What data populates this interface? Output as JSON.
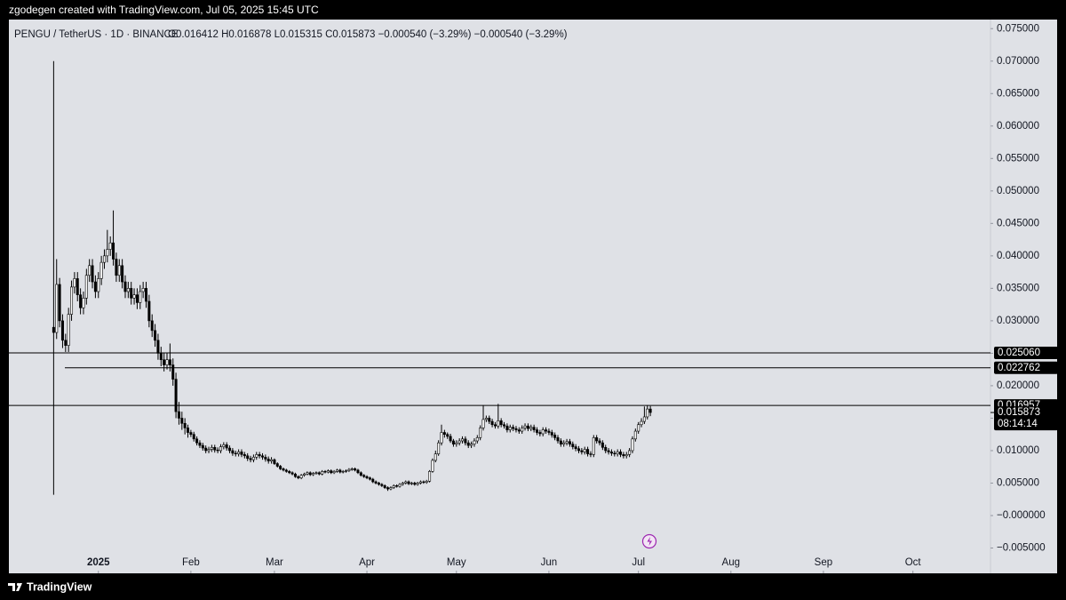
{
  "attribution": "zgodegen created with TradingView.com, Jul 05, 2025 15:45 UTC",
  "brand": "TradingView",
  "chart_data": {
    "type": "candlestick",
    "title": "PENGU / TetherUS · 1D · BINANCE",
    "ohlc_text": "O0.016412 H0.016878 L0.015315 C0.015873 −0.000540 (−3.29%) −0.000540 (−3.29%)",
    "up_color": "#ffffff",
    "down_color": "#000000",
    "xlim": [
      -30,
      299
    ],
    "xticks": [
      {
        "value": 0,
        "label": "2025"
      },
      {
        "value": 31,
        "label": "Feb"
      },
      {
        "value": 59,
        "label": "Mar"
      },
      {
        "value": 90,
        "label": "Apr"
      },
      {
        "value": 120,
        "label": "May"
      },
      {
        "value": 151,
        "label": "Jun"
      },
      {
        "value": 181,
        "label": "Jul"
      },
      {
        "value": 212,
        "label": "Aug"
      },
      {
        "value": 243,
        "label": "Sep"
      },
      {
        "value": 273,
        "label": "Oct"
      }
    ],
    "ylim": [
      -0.0089,
      0.0764
    ],
    "yticks": [
      {
        "value": -0.005,
        "label": "−0.005000"
      },
      {
        "value": 0,
        "label": "−0.000000"
      },
      {
        "value": 0.005,
        "label": "0.005000"
      },
      {
        "value": 0.01,
        "label": "0.010000"
      },
      {
        "value": 0.015,
        "label": "0.015000"
      },
      {
        "value": 0.02,
        "label": "0.020000"
      },
      {
        "value": 0.025,
        "label": "0.025000"
      },
      {
        "value": 0.03,
        "label": "0.030000"
      },
      {
        "value": 0.035,
        "label": "0.035000"
      },
      {
        "value": 0.04,
        "label": "0.040000"
      },
      {
        "value": 0.045,
        "label": "0.045000"
      },
      {
        "value": 0.05,
        "label": "0.050000"
      },
      {
        "value": 0.055,
        "label": "0.055000"
      },
      {
        "value": 0.06,
        "label": "0.060000"
      },
      {
        "value": 0.065,
        "label": "0.065000"
      },
      {
        "value": 0.07,
        "label": "0.070000"
      },
      {
        "value": 0.075,
        "label": "0.075000"
      }
    ],
    "levels": [
      {
        "value": 0.02506,
        "label": "0.025060"
      },
      {
        "value": 0.022762,
        "label": "0.022762"
      },
      {
        "value": 0.016957,
        "label": "0.016957"
      }
    ],
    "last_price": {
      "value": 0.015873,
      "label": "0.015873"
    },
    "countdown": "08:14:14",
    "x": [
      -15,
      -14,
      -13,
      -12,
      -11,
      -10,
      -9,
      -8,
      -7,
      -6,
      -5,
      -4,
      -3,
      -2,
      -1,
      0,
      1,
      2,
      3,
      4,
      5,
      6,
      7,
      8,
      9,
      10,
      11,
      12,
      13,
      14,
      15,
      16,
      17,
      18,
      19,
      20,
      21,
      22,
      23,
      24,
      25,
      26,
      27,
      28,
      29,
      30,
      31,
      32,
      33,
      34,
      35,
      36,
      37,
      38,
      39,
      40,
      41,
      42,
      43,
      44,
      45,
      46,
      47,
      48,
      49,
      50,
      51,
      52,
      53,
      54,
      55,
      56,
      57,
      58,
      59,
      60,
      61,
      62,
      63,
      64,
      65,
      66,
      67,
      68,
      69,
      70,
      71,
      72,
      73,
      74,
      75,
      76,
      77,
      78,
      79,
      80,
      81,
      82,
      83,
      84,
      85,
      86,
      87,
      88,
      89,
      90,
      91,
      92,
      93,
      94,
      95,
      96,
      97,
      98,
      99,
      100,
      101,
      102,
      103,
      104,
      105,
      106,
      107,
      108,
      109,
      110,
      111,
      112,
      113,
      114,
      115,
      116,
      117,
      118,
      119,
      120,
      121,
      122,
      123,
      124,
      125,
      126,
      127,
      128,
      129,
      130,
      131,
      132,
      133,
      134,
      135,
      136,
      137,
      138,
      139,
      140,
      141,
      142,
      143,
      144,
      145,
      146,
      147,
      148,
      149,
      150,
      151,
      152,
      153,
      154,
      155,
      156,
      157,
      158,
      159,
      160,
      161,
      162,
      163,
      164,
      165,
      166,
      167,
      168,
      169,
      170,
      171,
      172,
      173,
      174,
      175,
      176,
      177,
      178,
      179,
      180,
      181,
      182,
      183,
      184,
      185
    ],
    "open": [
      0.029,
      0.0282,
      0.0356,
      0.03,
      0.027,
      0.0262,
      0.031,
      0.0352,
      0.0365,
      0.034,
      0.032,
      0.0335,
      0.037,
      0.0385,
      0.036,
      0.0345,
      0.0365,
      0.039,
      0.04,
      0.041,
      0.042,
      0.0395,
      0.037,
      0.0385,
      0.036,
      0.0345,
      0.035,
      0.0335,
      0.034,
      0.0328,
      0.0345,
      0.035,
      0.033,
      0.03,
      0.0285,
      0.027,
      0.025,
      0.024,
      0.0232,
      0.024,
      0.0232,
      0.021,
      0.016,
      0.015,
      0.0142,
      0.0135,
      0.0128,
      0.0125,
      0.0118,
      0.0112,
      0.0108,
      0.0104,
      0.01,
      0.0102,
      0.0105,
      0.0101,
      0.01,
      0.0106,
      0.0109,
      0.0104,
      0.01,
      0.0096,
      0.0095,
      0.0098,
      0.0094,
      0.0092,
      0.0088,
      0.0086,
      0.009,
      0.0094,
      0.0092,
      0.009,
      0.0087,
      0.0084,
      0.0086,
      0.008,
      0.0076,
      0.0072,
      0.007,
      0.0068,
      0.0066,
      0.0064,
      0.006,
      0.0058,
      0.0062,
      0.0064,
      0.0066,
      0.0063,
      0.0065,
      0.0066,
      0.0064,
      0.0068,
      0.0067,
      0.0069,
      0.0066,
      0.0068,
      0.007,
      0.0067,
      0.0068,
      0.0069,
      0.0071,
      0.0072,
      0.007,
      0.0066,
      0.0062,
      0.006,
      0.0058,
      0.0056,
      0.0052,
      0.005,
      0.0048,
      0.0046,
      0.0043,
      0.0041,
      0.0043,
      0.0046,
      0.0045,
      0.0048,
      0.005,
      0.0052,
      0.0049,
      0.005,
      0.0048,
      0.005,
      0.0052,
      0.0051,
      0.0053,
      0.0068,
      0.0085,
      0.0095,
      0.0112,
      0.0128,
      0.0125,
      0.0122,
      0.0115,
      0.011,
      0.0112,
      0.0115,
      0.0118,
      0.0112,
      0.0108,
      0.011,
      0.0115,
      0.012,
      0.0135,
      0.0148,
      0.015,
      0.0145,
      0.014,
      0.0138,
      0.0146,
      0.014,
      0.0138,
      0.0132,
      0.0136,
      0.0134,
      0.0132,
      0.013,
      0.0135,
      0.0138,
      0.0134,
      0.0136,
      0.0132,
      0.0128,
      0.0126,
      0.0132,
      0.013,
      0.0128,
      0.0124,
      0.012,
      0.0115,
      0.011,
      0.0112,
      0.0114,
      0.011,
      0.0106,
      0.0103,
      0.01,
      0.0098,
      0.0102,
      0.0095,
      0.0094,
      0.012,
      0.0115,
      0.0112,
      0.0105,
      0.01,
      0.0098,
      0.0096,
      0.0095,
      0.0098,
      0.0094,
      0.0092,
      0.0094,
      0.01,
      0.0118,
      0.013,
      0.014,
      0.0145,
      0.0152,
      0.016412
    ],
    "high": [
      0.07,
      0.0395,
      0.0366,
      0.031,
      0.028,
      0.032,
      0.0362,
      0.0375,
      0.0375,
      0.035,
      0.0345,
      0.038,
      0.0395,
      0.0395,
      0.037,
      0.0375,
      0.04,
      0.041,
      0.044,
      0.043,
      0.047,
      0.0405,
      0.0395,
      0.0395,
      0.037,
      0.036,
      0.036,
      0.035,
      0.035,
      0.0355,
      0.036,
      0.036,
      0.034,
      0.031,
      0.0295,
      0.028,
      0.026,
      0.025,
      0.025,
      0.0265,
      0.0242,
      0.022,
      0.0175,
      0.016,
      0.015,
      0.014,
      0.0132,
      0.0129,
      0.0122,
      0.0116,
      0.0112,
      0.0108,
      0.0106,
      0.0109,
      0.0109,
      0.0105,
      0.011,
      0.0113,
      0.0113,
      0.0108,
      0.0104,
      0.01,
      0.0102,
      0.0102,
      0.0098,
      0.0096,
      0.0092,
      0.0094,
      0.0098,
      0.0098,
      0.0096,
      0.0094,
      0.0091,
      0.009,
      0.0088,
      0.0082,
      0.0078,
      0.0074,
      0.0072,
      0.007,
      0.0068,
      0.0066,
      0.0062,
      0.0064,
      0.0066,
      0.0068,
      0.0068,
      0.0067,
      0.0068,
      0.0068,
      0.007,
      0.007,
      0.0071,
      0.0071,
      0.007,
      0.0072,
      0.0072,
      0.007,
      0.0071,
      0.0073,
      0.0074,
      0.0074,
      0.0072,
      0.0068,
      0.0064,
      0.0062,
      0.006,
      0.0058,
      0.0054,
      0.0052,
      0.005,
      0.0048,
      0.0045,
      0.0045,
      0.0048,
      0.0048,
      0.005,
      0.0052,
      0.0054,
      0.0054,
      0.0052,
      0.0052,
      0.0052,
      0.0054,
      0.0054,
      0.0055,
      0.007,
      0.0088,
      0.01,
      0.0116,
      0.014,
      0.0132,
      0.0128,
      0.0126,
      0.0118,
      0.0116,
      0.0119,
      0.0122,
      0.0122,
      0.0116,
      0.0114,
      0.0119,
      0.0124,
      0.0139,
      0.017,
      0.0154,
      0.0154,
      0.0149,
      0.0144,
      0.0172,
      0.015,
      0.0144,
      0.0142,
      0.014,
      0.014,
      0.0138,
      0.0136,
      0.0139,
      0.0142,
      0.0142,
      0.014,
      0.014,
      0.0136,
      0.0132,
      0.0136,
      0.0136,
      0.0134,
      0.0132,
      0.0128,
      0.0124,
      0.0119,
      0.0116,
      0.0118,
      0.0118,
      0.0114,
      0.011,
      0.0107,
      0.0104,
      0.0106,
      0.0106,
      0.0099,
      0.0124,
      0.0124,
      0.0119,
      0.0116,
      0.0109,
      0.0104,
      0.0102,
      0.01,
      0.0102,
      0.0102,
      0.0098,
      0.0098,
      0.0104,
      0.0122,
      0.0134,
      0.0144,
      0.015,
      0.0168,
      0.017,
      0.016878
    ],
    "low": [
      0.0032,
      0.0272,
      0.029,
      0.0258,
      0.0252,
      0.0252,
      0.03,
      0.0342,
      0.033,
      0.031,
      0.031,
      0.0325,
      0.036,
      0.035,
      0.0335,
      0.0335,
      0.0355,
      0.038,
      0.039,
      0.04,
      0.0385,
      0.036,
      0.036,
      0.035,
      0.0335,
      0.0335,
      0.0325,
      0.0325,
      0.0318,
      0.0318,
      0.0335,
      0.032,
      0.029,
      0.0275,
      0.026,
      0.024,
      0.023,
      0.0222,
      0.0225,
      0.0222,
      0.02,
      0.015,
      0.014,
      0.0132,
      0.0125,
      0.012,
      0.0121,
      0.0114,
      0.0108,
      0.0104,
      0.01,
      0.0096,
      0.0096,
      0.0098,
      0.0097,
      0.0096,
      0.0096,
      0.0102,
      0.01,
      0.0096,
      0.0092,
      0.0091,
      0.0091,
      0.009,
      0.0088,
      0.0084,
      0.0082,
      0.0082,
      0.0086,
      0.0088,
      0.0086,
      0.0083,
      0.008,
      0.008,
      0.0078,
      0.0074,
      0.007,
      0.0068,
      0.0066,
      0.0064,
      0.0062,
      0.0058,
      0.0056,
      0.0056,
      0.006,
      0.0062,
      0.0061,
      0.0061,
      0.0063,
      0.0062,
      0.0062,
      0.0065,
      0.0065,
      0.0064,
      0.0064,
      0.0066,
      0.0065,
      0.0065,
      0.0066,
      0.0067,
      0.0069,
      0.0068,
      0.0064,
      0.006,
      0.0058,
      0.0056,
      0.0054,
      0.005,
      0.0048,
      0.0046,
      0.0044,
      0.0041,
      0.0038,
      0.0039,
      0.0041,
      0.0043,
      0.0043,
      0.0046,
      0.0048,
      0.0047,
      0.0047,
      0.0046,
      0.0046,
      0.0048,
      0.0049,
      0.0049,
      0.0051,
      0.0066,
      0.0082,
      0.0092,
      0.0108,
      0.012,
      0.0118,
      0.0112,
      0.0106,
      0.0106,
      0.0108,
      0.0111,
      0.0108,
      0.0104,
      0.0104,
      0.0106,
      0.0111,
      0.0116,
      0.0131,
      0.0144,
      0.0141,
      0.0136,
      0.0134,
      0.0134,
      0.0136,
      0.0134,
      0.0128,
      0.0128,
      0.013,
      0.0128,
      0.0126,
      0.0126,
      0.0131,
      0.013,
      0.013,
      0.0128,
      0.0124,
      0.0122,
      0.0122,
      0.0126,
      0.0124,
      0.012,
      0.0116,
      0.0111,
      0.0106,
      0.0106,
      0.0108,
      0.0106,
      0.0102,
      0.0099,
      0.0096,
      0.0094,
      0.0094,
      0.0091,
      0.009,
      0.009,
      0.0111,
      0.0108,
      0.0101,
      0.0096,
      0.0094,
      0.0092,
      0.0091,
      0.0091,
      0.009,
      0.0088,
      0.0088,
      0.009,
      0.0096,
      0.0114,
      0.0126,
      0.0136,
      0.0141,
      0.0148,
      0.015315
    ],
    "close": [
      0.0282,
      0.0356,
      0.03,
      0.027,
      0.0262,
      0.031,
      0.0352,
      0.0365,
      0.034,
      0.032,
      0.0335,
      0.037,
      0.0385,
      0.036,
      0.0345,
      0.0365,
      0.039,
      0.04,
      0.041,
      0.042,
      0.0395,
      0.037,
      0.0385,
      0.036,
      0.0345,
      0.035,
      0.0335,
      0.034,
      0.0328,
      0.0345,
      0.035,
      0.033,
      0.03,
      0.0285,
      0.027,
      0.025,
      0.024,
      0.0232,
      0.024,
      0.0232,
      0.021,
      0.016,
      0.015,
      0.0142,
      0.0135,
      0.0128,
      0.0125,
      0.0118,
      0.0112,
      0.0108,
      0.0104,
      0.01,
      0.0102,
      0.0105,
      0.0101,
      0.01,
      0.0106,
      0.0109,
      0.0104,
      0.01,
      0.0096,
      0.0095,
      0.0098,
      0.0094,
      0.0092,
      0.0088,
      0.0086,
      0.009,
      0.0094,
      0.0092,
      0.009,
      0.0087,
      0.0084,
      0.0086,
      0.008,
      0.0076,
      0.0072,
      0.007,
      0.0068,
      0.0066,
      0.0064,
      0.006,
      0.0058,
      0.0062,
      0.0064,
      0.0066,
      0.0063,
      0.0065,
      0.0066,
      0.0064,
      0.0068,
      0.0067,
      0.0069,
      0.0066,
      0.0068,
      0.007,
      0.0067,
      0.0068,
      0.0069,
      0.0071,
      0.0072,
      0.007,
      0.0066,
      0.0062,
      0.006,
      0.0058,
      0.0056,
      0.0052,
      0.005,
      0.0048,
      0.0046,
      0.0043,
      0.0041,
      0.0043,
      0.0046,
      0.0045,
      0.0048,
      0.005,
      0.0052,
      0.0049,
      0.005,
      0.0048,
      0.005,
      0.0052,
      0.0051,
      0.0053,
      0.0068,
      0.0085,
      0.0095,
      0.0112,
      0.0128,
      0.0125,
      0.0122,
      0.0115,
      0.011,
      0.0112,
      0.0115,
      0.0118,
      0.0112,
      0.0108,
      0.011,
      0.0115,
      0.012,
      0.0135,
      0.0148,
      0.015,
      0.0145,
      0.014,
      0.0138,
      0.0146,
      0.014,
      0.0138,
      0.0132,
      0.0136,
      0.0134,
      0.0132,
      0.013,
      0.0135,
      0.0138,
      0.0134,
      0.0136,
      0.0132,
      0.0128,
      0.0126,
      0.0132,
      0.013,
      0.0128,
      0.0124,
      0.012,
      0.0115,
      0.011,
      0.0112,
      0.0114,
      0.011,
      0.0106,
      0.0103,
      0.01,
      0.0098,
      0.0102,
      0.0095,
      0.0094,
      0.012,
      0.0115,
      0.0112,
      0.0105,
      0.01,
      0.0098,
      0.0096,
      0.0095,
      0.0098,
      0.0094,
      0.0092,
      0.0094,
      0.01,
      0.0118,
      0.013,
      0.014,
      0.0145,
      0.0152,
      0.016412,
      0.015873
    ]
  }
}
